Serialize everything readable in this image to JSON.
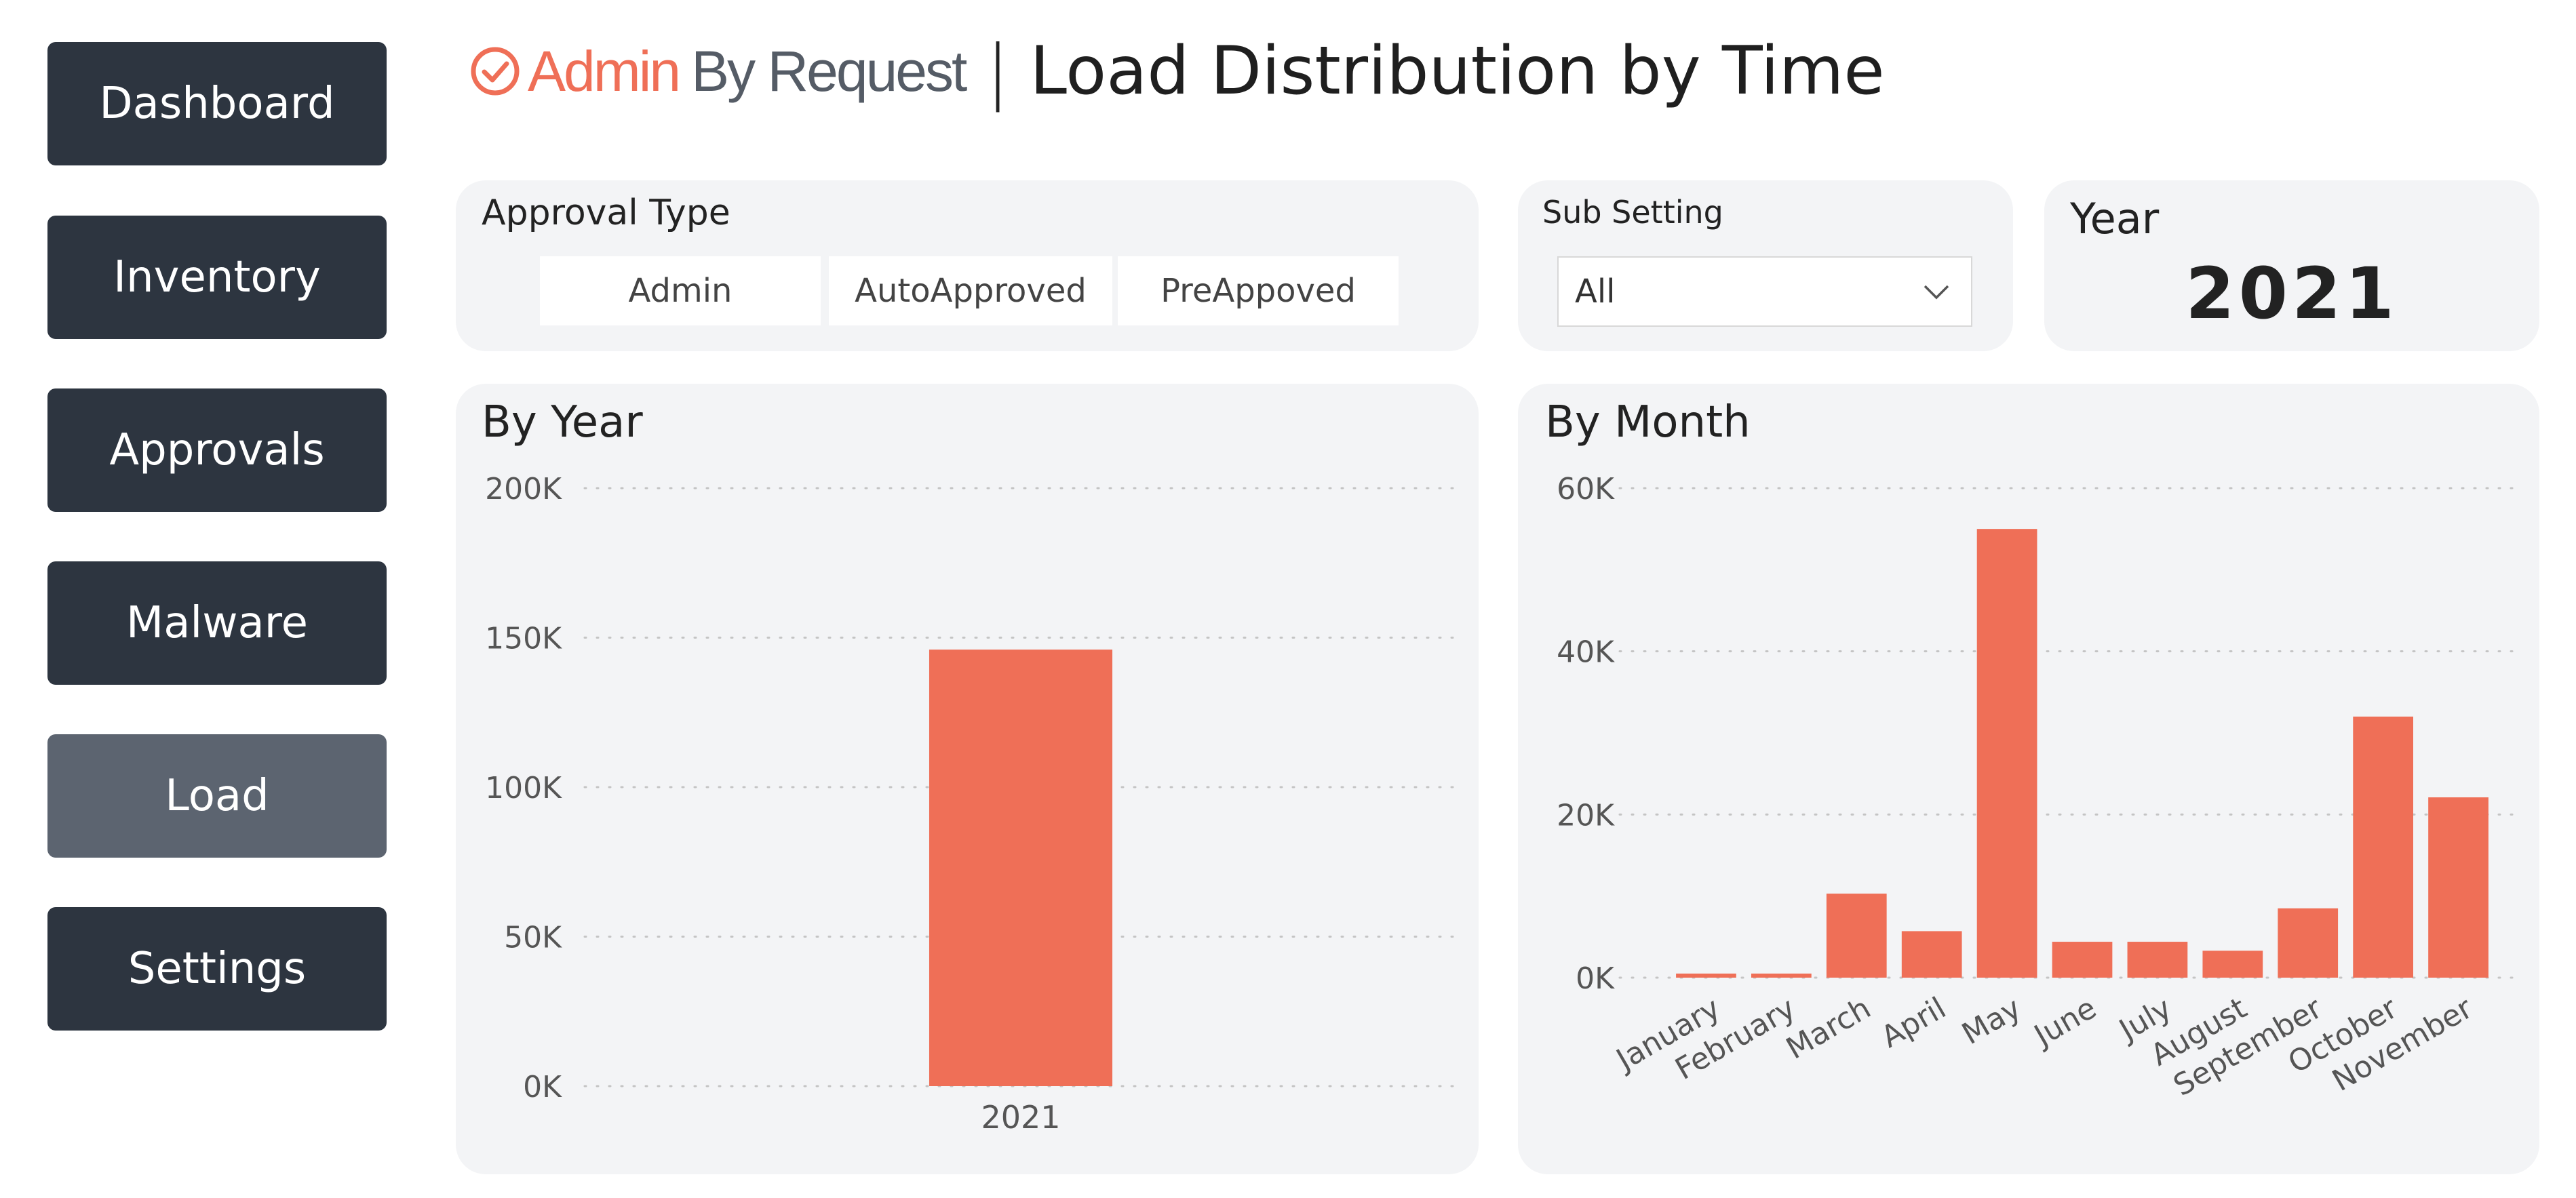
{
  "nav": {
    "items": [
      {
        "label": "Dashboard"
      },
      {
        "label": "Inventory"
      },
      {
        "label": "Approvals"
      },
      {
        "label": "Malware"
      },
      {
        "label": "Load",
        "active": true
      },
      {
        "label": "Settings"
      }
    ]
  },
  "header": {
    "logo_word1": "Admin",
    "logo_word2": "By Request",
    "separator": "|",
    "title": "Load Distribution by Time"
  },
  "filters": {
    "approval_type": {
      "label": "Approval Type",
      "options": [
        "Admin",
        "AutoApproved",
        "PreAppoved"
      ]
    },
    "sub_setting": {
      "label": "Sub Setting",
      "value": "All"
    },
    "year": {
      "label": "Year",
      "value": "2021"
    }
  },
  "colors": {
    "accent": "#ef6f57",
    "nav_bg": "#2d3540",
    "nav_active_bg": "#5c6470",
    "card_bg": "#f3f4f6"
  },
  "chart_data": [
    {
      "type": "bar",
      "title": "By Year",
      "categories": [
        "2021"
      ],
      "values": [
        146000
      ],
      "ylim": [
        0,
        200000
      ],
      "yticks": [
        "0K",
        "50K",
        "100K",
        "150K",
        "200K"
      ],
      "grid": true
    },
    {
      "type": "bar",
      "title": "By Month",
      "categories": [
        "January",
        "February",
        "March",
        "April",
        "May",
        "June",
        "July",
        "August",
        "September",
        "October",
        "November"
      ],
      "values": [
        500,
        500,
        10300,
        5700,
        55000,
        4400,
        4400,
        3300,
        8500,
        32000,
        22100
      ],
      "ylim": [
        0,
        60000
      ],
      "yticks": [
        "0K",
        "20K",
        "40K",
        "60K"
      ],
      "grid": true
    }
  ]
}
